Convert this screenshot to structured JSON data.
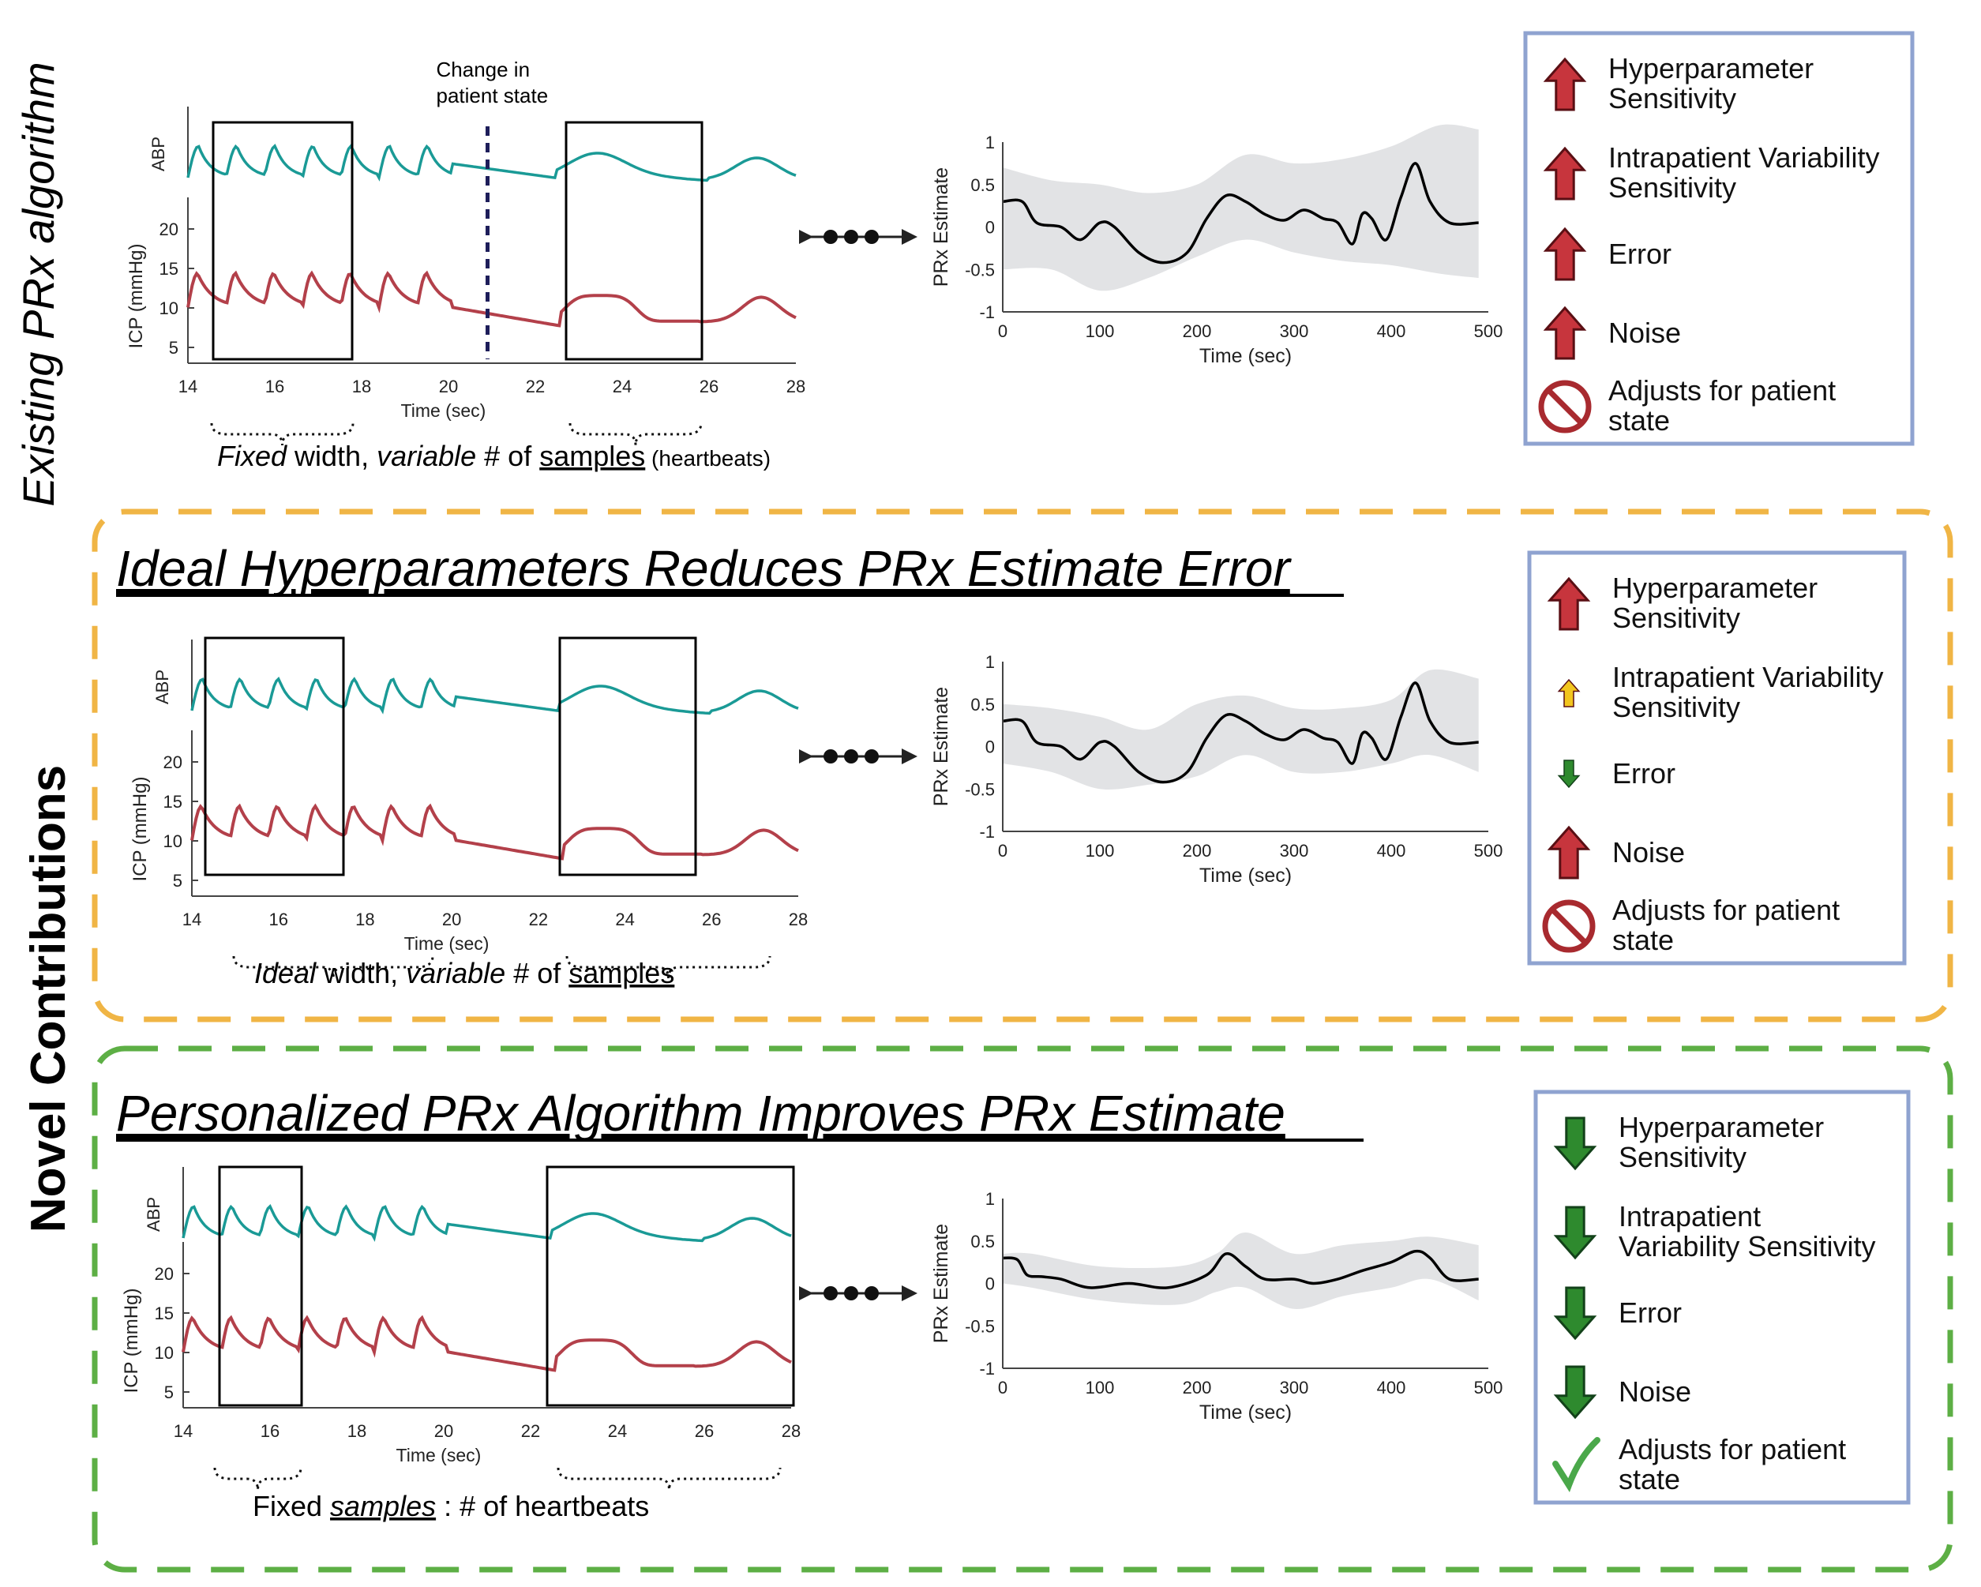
{
  "side_labels": {
    "existing": "Existing PRx algorithm",
    "novel": "Novel Contributions"
  },
  "colors": {
    "abp": "#1a9a96",
    "icp": "#b3404a",
    "orange_frame": "#f0b545",
    "green_frame": "#5daf45",
    "legend_border": "#8fa3d0",
    "red_arrow": "#c7353d",
    "green_arrow": "#2e8a2e",
    "yellow_arrow": "#f2c51e",
    "band": "#e2e3e5"
  },
  "panels": [
    {
      "id": "existing",
      "heading": "",
      "signal": {
        "abp_label": "ABP",
        "icp_label": "ICP (mmHg)",
        "icp_ticks": [
          "20",
          "15",
          "10",
          "5"
        ],
        "x_ticks": [
          "14",
          "16",
          "18",
          "20",
          "22",
          "24",
          "26",
          "28"
        ],
        "x_label": "Time (sec)",
        "annotation": "Change in\npatient state"
      },
      "caption": {
        "parts": [
          {
            "text": "Fixed",
            "style": "italic"
          },
          {
            "text": " width, ",
            "style": "normal"
          },
          {
            "text": "variable",
            "style": "italic"
          },
          {
            "text": " # of ",
            "style": "normal"
          },
          {
            "text": "samples",
            "style": "underline"
          },
          {
            "text": " (heartbeats)",
            "style": "small"
          }
        ]
      },
      "prx_chart": {
        "y_label": "PRx Estimate",
        "y_ticks": [
          "1",
          "0.5",
          "0",
          "-0.5",
          "-1"
        ],
        "x_ticks": [
          "0",
          "100",
          "200",
          "300",
          "400",
          "500"
        ],
        "x_label": "Time (sec)"
      },
      "legend": [
        {
          "icon": "red-up-arrow-icon",
          "label": "Hyperparameter\nSensitivity"
        },
        {
          "icon": "red-up-arrow-icon",
          "label": "Intrapatient Variability\nSensitivity"
        },
        {
          "icon": "red-up-arrow-icon",
          "label": "Error"
        },
        {
          "icon": "red-up-arrow-icon",
          "label": "Noise"
        },
        {
          "icon": "no-sign-icon",
          "label": "Adjusts for patient\nstate"
        }
      ]
    },
    {
      "id": "ideal",
      "heading": "Ideal Hyperparameters Reduces PRx Estimate Error",
      "signal": {
        "abp_label": "ABP",
        "icp_label": "ICP (mmHg)",
        "icp_ticks": [
          "20",
          "15",
          "10",
          "5"
        ],
        "x_ticks": [
          "14",
          "16",
          "18",
          "20",
          "22",
          "24",
          "26",
          "28"
        ],
        "x_label": "Time (sec)",
        "annotation": ""
      },
      "caption": {
        "parts": [
          {
            "text": "Ideal",
            "style": "italic"
          },
          {
            "text": " width, ",
            "style": "normal"
          },
          {
            "text": "variable",
            "style": "italic"
          },
          {
            "text": " # of ",
            "style": "normal"
          },
          {
            "text": "samples",
            "style": "underline"
          }
        ]
      },
      "prx_chart": {
        "y_label": "PRx Estimate",
        "y_ticks": [
          "1",
          "0.5",
          "0",
          "-0.5",
          "-1"
        ],
        "x_ticks": [
          "0",
          "100",
          "200",
          "300",
          "400",
          "500"
        ],
        "x_label": "Time (sec)"
      },
      "legend": [
        {
          "icon": "red-up-arrow-icon",
          "label": "Hyperparameter\nSensitivity"
        },
        {
          "icon": "small-yellow-up-arrow-icon",
          "label": "Intrapatient Variability\nSensitivity"
        },
        {
          "icon": "small-green-down-arrow-icon",
          "label": "Error"
        },
        {
          "icon": "red-up-arrow-icon",
          "label": "Noise"
        },
        {
          "icon": "no-sign-icon",
          "label": "Adjusts for patient\nstate"
        }
      ]
    },
    {
      "id": "personalized",
      "heading": "Personalized PRx Algorithm Improves PRx Estimate",
      "signal": {
        "abp_label": "ABP",
        "icp_label": "ICP (mmHg)",
        "icp_ticks": [
          "20",
          "15",
          "10",
          "5"
        ],
        "x_ticks": [
          "14",
          "16",
          "18",
          "20",
          "22",
          "24",
          "26",
          "28"
        ],
        "x_label": "Time (sec)",
        "annotation": ""
      },
      "caption": {
        "parts": [
          {
            "text": "Fixed ",
            "style": "normal"
          },
          {
            "text": "samples",
            "style": "italic-underline"
          },
          {
            "text": " : # of heartbeats",
            "style": "normal"
          }
        ]
      },
      "prx_chart": {
        "y_label": "PRx Estimate",
        "y_ticks": [
          "1",
          "0.5",
          "0",
          "-0.5",
          "-1"
        ],
        "x_ticks": [
          "0",
          "100",
          "200",
          "300",
          "400",
          "500"
        ],
        "x_label": "Time (sec)"
      },
      "legend": [
        {
          "icon": "green-down-arrow-icon",
          "label": "Hyperparameter\nSensitivity"
        },
        {
          "icon": "green-down-arrow-icon",
          "label": "Intrapatient\nVariability Sensitivity"
        },
        {
          "icon": "green-down-arrow-icon",
          "label": "Error"
        },
        {
          "icon": "green-down-arrow-icon",
          "label": "Noise"
        },
        {
          "icon": "check-icon",
          "label": "Adjusts for patient\nstate"
        }
      ]
    }
  ]
}
